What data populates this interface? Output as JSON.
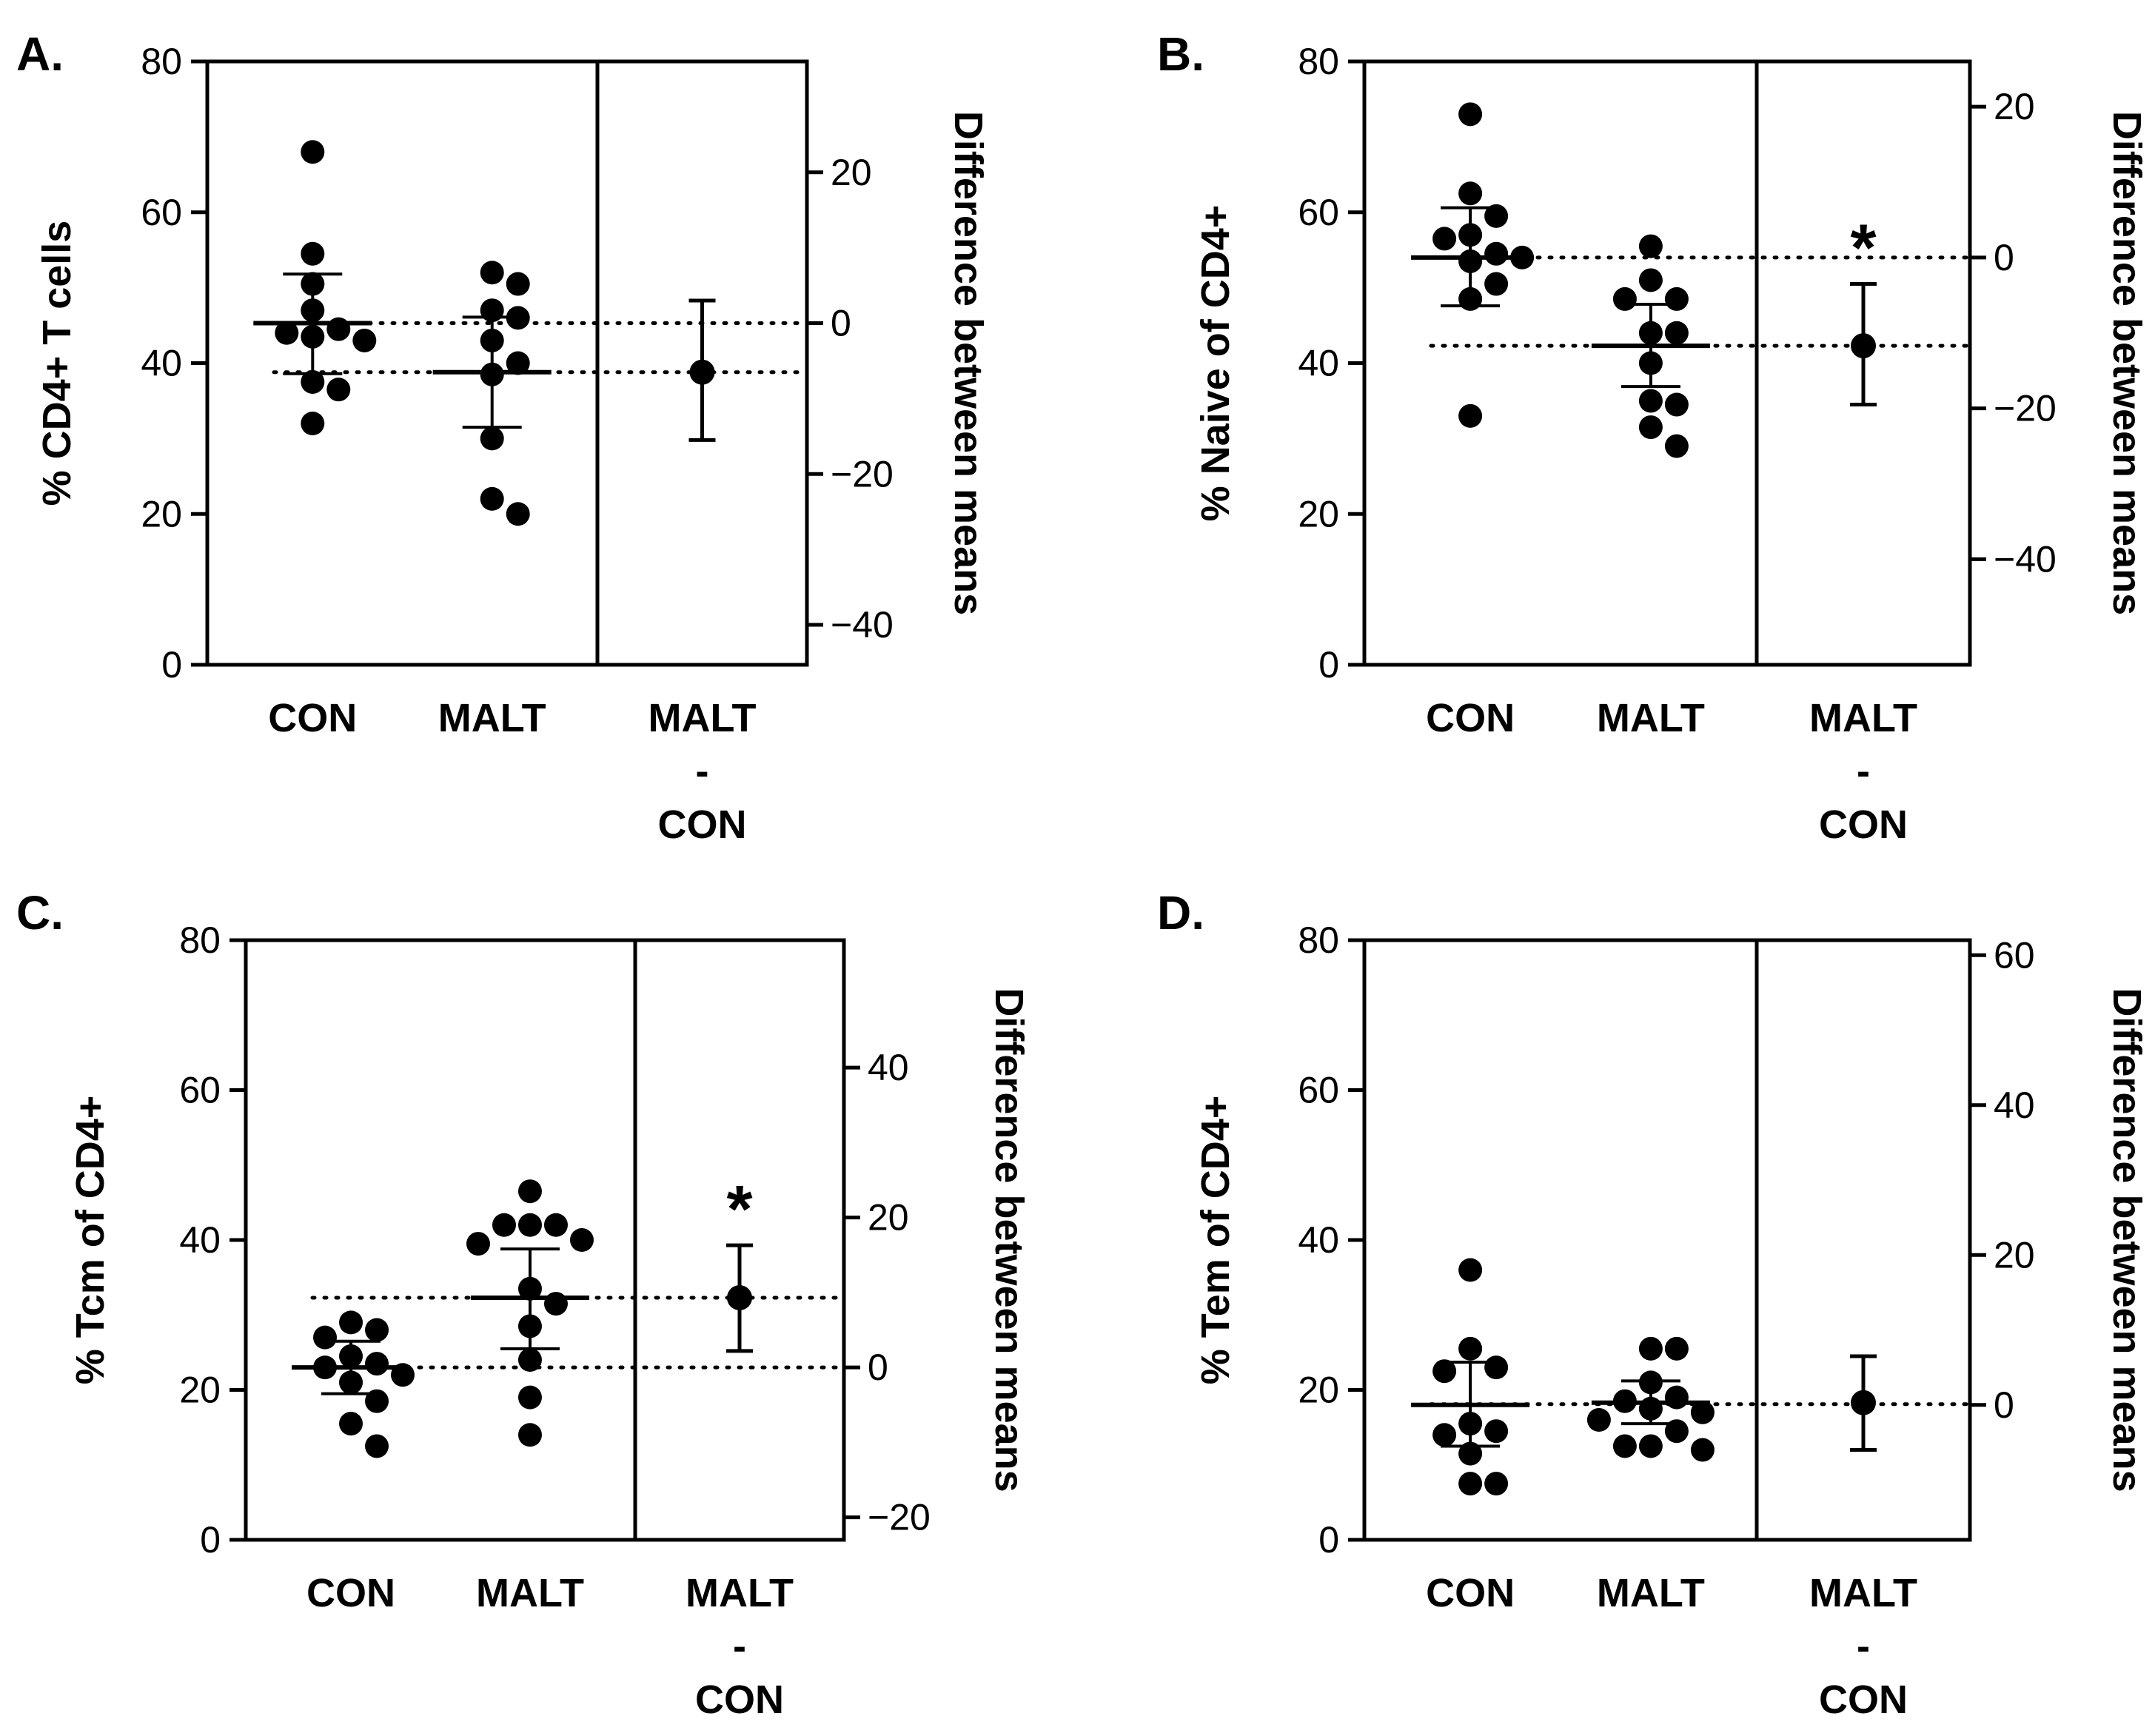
{
  "figure": {
    "background": "#ffffff",
    "ink": "#000000"
  },
  "chart_data": [
    {
      "type": "scatter",
      "panel_label": "A.",
      "ylabel": "% CD4+ T cells",
      "ylabel_right": "Difference between means",
      "ylim": [
        0,
        80
      ],
      "yticks": [
        0,
        20,
        40,
        60,
        80
      ],
      "ylim_right": [
        -45.3,
        34.7
      ],
      "yticks_right": [
        -40,
        -20,
        0,
        20
      ],
      "categories": [
        "CON",
        "MALT",
        "MALT\n-\nCON"
      ],
      "groups": [
        {
          "name": "CON",
          "points": [
            68,
            54.5,
            50.5,
            47,
            44.5,
            44,
            43.5,
            43,
            37.5,
            36.5,
            32
          ],
          "mean": 45.3,
          "error": [
            38.6,
            51.8
          ]
        },
        {
          "name": "MALT",
          "points": [
            52,
            50.5,
            47,
            46,
            43,
            40,
            38.5,
            30,
            22,
            20
          ],
          "mean": 38.8,
          "error": [
            31.5,
            46.1
          ]
        }
      ],
      "difference": {
        "mean": -6.5,
        "ci": [
          -15.5,
          3.0
        ],
        "significant": false
      },
      "reference_lines": [
        45.3,
        38.8
      ]
    },
    {
      "type": "scatter",
      "panel_label": "B.",
      "ylabel": "% Naive of CD4+",
      "ylabel_right": "Difference between means",
      "ylim": [
        0,
        80
      ],
      "yticks": [
        0,
        20,
        40,
        60,
        80
      ],
      "ylim_right": [
        -54,
        26
      ],
      "yticks_right": [
        -40,
        -20,
        0,
        20
      ],
      "categories": [
        "CON",
        "MALT",
        "MALT\n-\nCON"
      ],
      "groups": [
        {
          "name": "CON",
          "points": [
            73,
            62.5,
            59.5,
            57,
            56.5,
            54.5,
            54,
            53.5,
            50.5,
            48.5,
            33
          ],
          "mean": 54,
          "error": [
            47.6,
            60.6
          ]
        },
        {
          "name": "MALT",
          "points": [
            55.5,
            51,
            48.5,
            48.5,
            44,
            44,
            40,
            35,
            34.5,
            31.5,
            29
          ],
          "mean": 42.3,
          "error": [
            36.9,
            47.8
          ]
        }
      ],
      "difference": {
        "mean": -11.7,
        "ci": [
          -19.5,
          -3.5
        ],
        "significant": true,
        "marker": "*"
      },
      "reference_lines": [
        54,
        42.3
      ]
    },
    {
      "type": "scatter",
      "panel_label": "C.",
      "ylabel": "% Tcm of CD4+",
      "ylabel_right": "Difference between means",
      "ylim": [
        0,
        80
      ],
      "yticks": [
        0,
        20,
        40,
        60,
        80
      ],
      "ylim_right": [
        -23,
        57
      ],
      "yticks_right": [
        -20,
        0,
        20,
        40
      ],
      "categories": [
        "CON",
        "MALT",
        "MALT\n-\nCON"
      ],
      "groups": [
        {
          "name": "CON",
          "points": [
            29,
            28,
            27,
            24.5,
            23.5,
            23,
            22,
            21,
            18.5,
            15.5,
            12.5
          ],
          "mean": 23.0,
          "error": [
            19.5,
            26.5
          ]
        },
        {
          "name": "MALT",
          "points": [
            46.5,
            42,
            42,
            42,
            40,
            39.5,
            33.5,
            31.5,
            28.5,
            24,
            19,
            14
          ],
          "mean": 32.3,
          "error": [
            25.5,
            38.8
          ]
        }
      ],
      "difference": {
        "mean": 9.3,
        "ci": [
          2.2,
          16.3
        ],
        "significant": true,
        "marker": "*"
      },
      "reference_lines": [
        32.3,
        23.0
      ]
    },
    {
      "type": "scatter",
      "panel_label": "D.",
      "ylabel": "% Tem of CD4+",
      "ylabel_right": "Difference between means",
      "ylim": [
        0,
        80
      ],
      "yticks": [
        0,
        20,
        40,
        60,
        80
      ],
      "ylim_right": [
        -18,
        62
      ],
      "yticks_right": [
        0,
        20,
        40,
        60
      ],
      "categories": [
        "CON",
        "MALT",
        "MALT\n-\nCON"
      ],
      "groups": [
        {
          "name": "CON",
          "points": [
            36,
            25.5,
            23,
            22.5,
            15.5,
            14.5,
            14,
            11.5,
            7.5,
            7.5
          ],
          "mean": 18,
          "error": [
            12.5,
            23.7
          ]
        },
        {
          "name": "MALT",
          "points": [
            25.5,
            25.5,
            21,
            19,
            18.5,
            17.5,
            17,
            16,
            14.5,
            12.5,
            12.5,
            12
          ],
          "mean": 18.3,
          "error": [
            15.5,
            21.2
          ]
        }
      ],
      "difference": {
        "mean": 0.3,
        "ci": [
          -6,
          6.5
        ],
        "significant": false
      },
      "reference_lines": [
        18.1
      ]
    }
  ]
}
